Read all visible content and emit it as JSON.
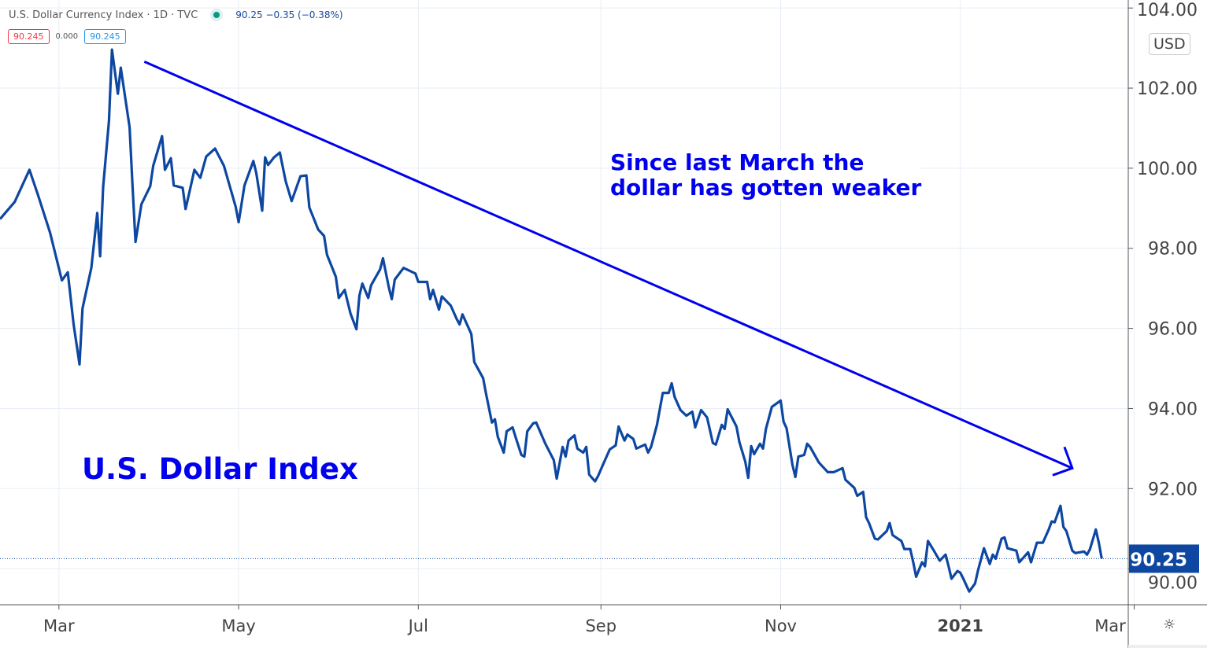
{
  "header": {
    "title": "U.S. Dollar Currency Index · 1D · TVC",
    "status_icon": "market-open-dot",
    "quote": "90.25  −0.35 (−0.38%)",
    "bid": "90.245",
    "spread": "0.000",
    "ask": "90.245"
  },
  "currency_label": "USD",
  "settings_icon": "gear-icon",
  "annotations": {
    "note_line1": "Since last March the",
    "note_line2": "dollar has gotten weaker",
    "label": "U.S. Dollar Index",
    "color": "#0000ee",
    "trend_arrow": {
      "from": [
        "2020-03-30",
        102.66
      ],
      "to": [
        "2021-02-08",
        92.51
      ]
    }
  },
  "chart_data": {
    "type": "line",
    "title": "",
    "xlabel": "",
    "ylabel": "",
    "xlim": [
      "2020-02-10",
      "2021-02-27"
    ],
    "ylim": [
      89.1,
      104.2
    ],
    "grid": true,
    "line_color": "#0d47a1",
    "last_price": {
      "value": 90.25,
      "label": "90.25",
      "color": "#0d47a1"
    },
    "x_ticks": [
      {
        "date": "2020-03-01",
        "label": "Mar"
      },
      {
        "date": "2020-05-01",
        "label": "May"
      },
      {
        "date": "2020-07-01",
        "label": "Jul"
      },
      {
        "date": "2020-09-01",
        "label": "Sep"
      },
      {
        "date": "2020-11-01",
        "label": "Nov"
      },
      {
        "date": "2021-01-01",
        "label": "2021"
      },
      {
        "date": "2021-03-01",
        "label": "Mar"
      }
    ],
    "y_ticks": [
      {
        "value": 104,
        "label": "104.00"
      },
      {
        "value": 102,
        "label": "102.00"
      },
      {
        "value": 100,
        "label": "100.00"
      },
      {
        "value": 98,
        "label": "98.00"
      },
      {
        "value": 96,
        "label": "96.00"
      },
      {
        "value": 94,
        "label": "94.00"
      },
      {
        "value": 92,
        "label": "92.00"
      },
      {
        "value": 90,
        "label": "90.00"
      }
    ],
    "series": [
      {
        "x": [
          "2020-02-10",
          "2020-02-15",
          "2020-02-20",
          "2020-02-23",
          "2020-02-27",
          "2020-03-02",
          "2020-03-04",
          "2020-03-06",
          "2020-03-08",
          "2020-03-09",
          "2020-03-12",
          "2020-03-14",
          "2020-03-15",
          "2020-03-16",
          "2020-03-18",
          "2020-03-19",
          "2020-03-21",
          "2020-03-22",
          "2020-03-25",
          "2020-03-26",
          "2020-03-27",
          "2020-03-29",
          "2020-04-01",
          "2020-04-02",
          "2020-04-05",
          "2020-04-06",
          "2020-04-08",
          "2020-04-09",
          "2020-04-12",
          "2020-04-13",
          "2020-04-15",
          "2020-04-16",
          "2020-04-18",
          "2020-04-20",
          "2020-04-23",
          "2020-04-26",
          "2020-04-30",
          "2020-05-01",
          "2020-05-03",
          "2020-05-06",
          "2020-05-07",
          "2020-05-09",
          "2020-05-10",
          "2020-05-11",
          "2020-05-13",
          "2020-05-15",
          "2020-05-17",
          "2020-05-19",
          "2020-05-22",
          "2020-05-24",
          "2020-05-25",
          "2020-05-28",
          "2020-05-30",
          "2020-05-31",
          "2020-06-03",
          "2020-06-04",
          "2020-06-06",
          "2020-06-08",
          "2020-06-10",
          "2020-06-11",
          "2020-06-12",
          "2020-06-14",
          "2020-06-15",
          "2020-06-18",
          "2020-06-19",
          "2020-06-21",
          "2020-06-22",
          "2020-06-23",
          "2020-06-26",
          "2020-06-30",
          "2020-07-01",
          "2020-07-04",
          "2020-07-05",
          "2020-07-06",
          "2020-07-08",
          "2020-07-09",
          "2020-07-12",
          "2020-07-14",
          "2020-07-15",
          "2020-07-16",
          "2020-07-19",
          "2020-07-20",
          "2020-07-23",
          "2020-07-24",
          "2020-07-26",
          "2020-07-27",
          "2020-07-28",
          "2020-07-30",
          "2020-07-31",
          "2020-08-02",
          "2020-08-03",
          "2020-08-05",
          "2020-08-06",
          "2020-08-07",
          "2020-08-09",
          "2020-08-10",
          "2020-08-13",
          "2020-08-16",
          "2020-08-17",
          "2020-08-19",
          "2020-08-20",
          "2020-08-21",
          "2020-08-23",
          "2020-08-24",
          "2020-08-26",
          "2020-08-27",
          "2020-08-28",
          "2020-08-30",
          "2020-08-31",
          "2020-09-02",
          "2020-09-04",
          "2020-09-06",
          "2020-09-07",
          "2020-09-09",
          "2020-09-10",
          "2020-09-12",
          "2020-09-13",
          "2020-09-16",
          "2020-09-17",
          "2020-09-18",
          "2020-09-20",
          "2020-09-22",
          "2020-09-24",
          "2020-09-25",
          "2020-09-26",
          "2020-09-28",
          "2020-09-30",
          "2020-10-02",
          "2020-10-03",
          "2020-10-05",
          "2020-10-07",
          "2020-10-09",
          "2020-10-10",
          "2020-10-12",
          "2020-10-13",
          "2020-10-14",
          "2020-10-17",
          "2020-10-18",
          "2020-10-20",
          "2020-10-21",
          "2020-10-22",
          "2020-10-23",
          "2020-10-25",
          "2020-10-26",
          "2020-10-27",
          "2020-10-29",
          "2020-11-01",
          "2020-11-02",
          "2020-11-03",
          "2020-11-05",
          "2020-11-06",
          "2020-11-07",
          "2020-11-09",
          "2020-11-10",
          "2020-11-11",
          "2020-11-14",
          "2020-11-17",
          "2020-11-19",
          "2020-11-22",
          "2020-11-23",
          "2020-11-26",
          "2020-11-27",
          "2020-11-29",
          "2020-11-30",
          "2020-12-01",
          "2020-12-03",
          "2020-12-04",
          "2020-12-07",
          "2020-12-08",
          "2020-12-09",
          "2020-12-12",
          "2020-12-13",
          "2020-12-15",
          "2020-12-16",
          "2020-12-17",
          "2020-12-19",
          "2020-12-20",
          "2020-12-21",
          "2020-12-23",
          "2020-12-25",
          "2020-12-27",
          "2020-12-28",
          "2020-12-29",
          "2020-12-31",
          "2021-01-01",
          "2021-01-02",
          "2021-01-04",
          "2021-01-06",
          "2021-01-07",
          "2021-01-09",
          "2021-01-11",
          "2021-01-12",
          "2021-01-13",
          "2021-01-15",
          "2021-01-16",
          "2021-01-17",
          "2021-01-20",
          "2021-01-21",
          "2021-01-24",
          "2021-01-25",
          "2021-01-27",
          "2021-01-29",
          "2021-01-31",
          "2021-02-01",
          "2021-02-02",
          "2021-02-04",
          "2021-02-05",
          "2021-02-06",
          "2021-02-08",
          "2021-02-09",
          "2021-02-12",
          "2021-02-13",
          "2021-02-14",
          "2021-02-16",
          "2021-02-17",
          "2021-02-18"
        ],
        "values": [
          98.73,
          99.16,
          99.96,
          99.31,
          98.39,
          97.2,
          97.4,
          96.1,
          95.1,
          96.5,
          97.51,
          98.88,
          97.8,
          99.53,
          101.18,
          102.96,
          101.86,
          102.51,
          101.02,
          99.53,
          98.16,
          99.1,
          99.55,
          100.06,
          100.8,
          99.96,
          100.25,
          99.57,
          99.51,
          98.98,
          99.63,
          99.96,
          99.76,
          100.29,
          100.49,
          100.06,
          99.04,
          98.65,
          99.57,
          100.18,
          99.88,
          98.94,
          100.27,
          100.08,
          100.27,
          100.39,
          99.67,
          99.18,
          99.8,
          99.82,
          99.02,
          98.47,
          98.31,
          97.84,
          97.29,
          96.76,
          96.96,
          96.37,
          95.98,
          96.82,
          97.12,
          96.76,
          97.08,
          97.47,
          97.75,
          97.02,
          96.73,
          97.22,
          97.51,
          97.37,
          97.16,
          97.16,
          96.73,
          96.96,
          96.47,
          96.8,
          96.57,
          96.24,
          96.1,
          96.35,
          95.86,
          95.16,
          94.76,
          94.37,
          93.65,
          93.73,
          93.29,
          92.9,
          93.43,
          93.53,
          93.29,
          92.84,
          92.8,
          93.43,
          93.63,
          93.65,
          93.14,
          92.71,
          92.25,
          93.04,
          92.8,
          93.2,
          93.33,
          93.0,
          92.9,
          93.04,
          92.35,
          92.18,
          92.31,
          92.65,
          92.98,
          93.08,
          93.55,
          93.2,
          93.35,
          93.24,
          93.0,
          93.1,
          92.9,
          93.04,
          93.59,
          94.39,
          94.39,
          94.63,
          94.29,
          93.96,
          93.82,
          93.92,
          93.53,
          93.96,
          93.78,
          93.14,
          93.1,
          93.59,
          93.49,
          93.98,
          93.55,
          93.16,
          92.67,
          92.27,
          93.06,
          92.86,
          93.12,
          93.0,
          93.49,
          94.04,
          94.2,
          93.67,
          93.51,
          92.59,
          92.29,
          92.8,
          92.84,
          93.12,
          93.04,
          92.65,
          92.41,
          92.41,
          92.51,
          92.22,
          92.02,
          91.82,
          91.92,
          91.29,
          91.14,
          90.75,
          90.73,
          90.94,
          91.14,
          90.84,
          90.69,
          90.49,
          90.49,
          90.16,
          89.8,
          90.16,
          90.06,
          90.69,
          90.45,
          90.2,
          90.35,
          90.06,
          89.75,
          89.94,
          89.9,
          89.75,
          89.43,
          89.63,
          89.96,
          90.51,
          90.12,
          90.35,
          90.25,
          90.75,
          90.78,
          90.51,
          90.45,
          90.16,
          90.41,
          90.16,
          90.65,
          90.65,
          90.98,
          91.18,
          91.16,
          91.57,
          91.04,
          90.94,
          90.45,
          90.39,
          90.43,
          90.35,
          90.49,
          90.98,
          90.65,
          90.25
        ]
      }
    ]
  }
}
